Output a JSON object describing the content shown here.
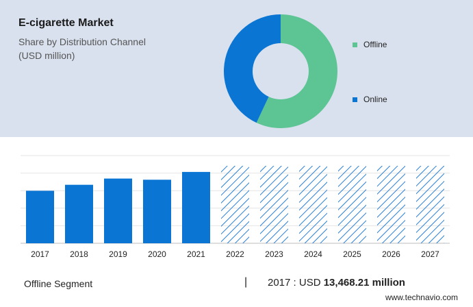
{
  "header": {
    "title": "E-cigarette Market",
    "subtitle_line1": "Share by Distribution Channel",
    "subtitle_line2": "(USD million)"
  },
  "colors": {
    "offline": "#5cc593",
    "online": "#0a75d3",
    "bar": "#0a75d3",
    "hatch": "#2a80d6",
    "top_panel_bg": "#d9e1ee"
  },
  "chart_data": [
    {
      "type": "pie",
      "style": "donut",
      "title": "",
      "labels": [
        "Offline",
        "Online"
      ],
      "values": [
        57,
        43
      ],
      "legend_position": "right"
    },
    {
      "type": "bar",
      "categories": [
        "2017",
        "2018",
        "2019",
        "2020",
        "2021",
        "2022",
        "2023",
        "2024",
        "2025",
        "2026",
        "2027"
      ],
      "values": [
        13468.21,
        15000,
        16600,
        16300,
        18300,
        null,
        null,
        null,
        null,
        null,
        null
      ],
      "forecast_years": [
        "2022",
        "2023",
        "2024",
        "2025",
        "2026",
        "2027"
      ],
      "ylim": [
        0,
        22500
      ],
      "grid": true,
      "ylabel": "",
      "xlabel": ""
    }
  ],
  "footer": {
    "segment_label": "Offline Segment",
    "separator": "|",
    "year_prefix": "2017 : USD",
    "value": "13,468.21 million",
    "source": "www.technavio.com"
  }
}
